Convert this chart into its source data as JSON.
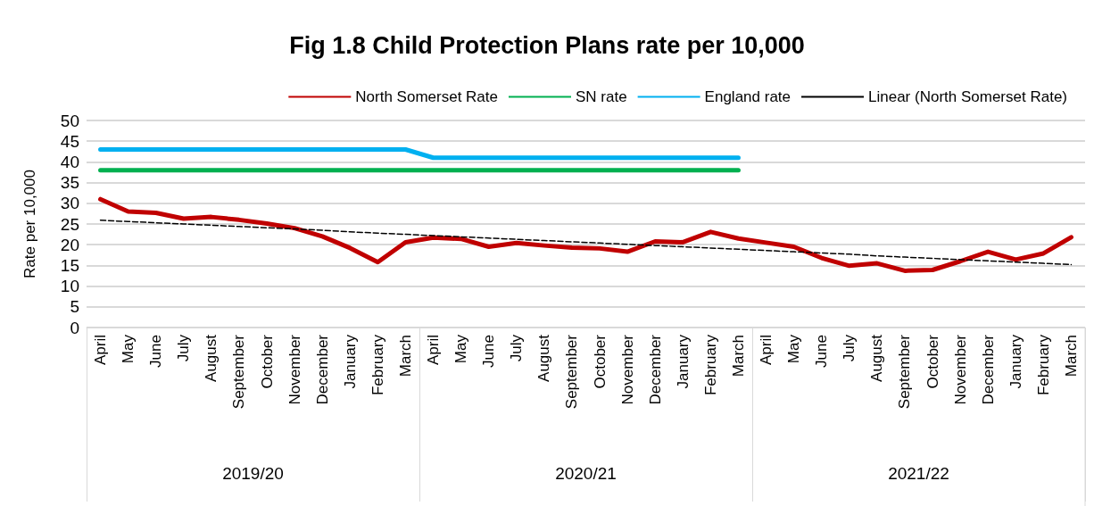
{
  "chart_data": {
    "type": "line",
    "title": "Fig 1.8 Child Protection Plans rate per 10,000",
    "ylabel": "Rate per 10,000",
    "categories": [
      "April",
      "May",
      "June",
      "July",
      "August",
      "September",
      "October",
      "November",
      "December",
      "January",
      "February",
      "March",
      "April",
      "May",
      "June",
      "July",
      "August",
      "September",
      "October",
      "November",
      "December",
      "January",
      "February",
      "March",
      "April",
      "May",
      "June",
      "July",
      "August",
      "September",
      "October",
      "November",
      "December",
      "January",
      "February",
      "March"
    ],
    "annotations": [
      "2019/20",
      "2020/21",
      "2021/22"
    ],
    "series": [
      {
        "name": "North Somerset Rate",
        "color": "#c00000",
        "values": [
          31,
          28,
          27.7,
          26.3,
          26.7,
          26,
          25.1,
          24,
          22,
          19.2,
          15.8,
          20.6,
          21.7,
          21.4,
          19.5,
          20.4,
          19.8,
          19.3,
          19.1,
          18.3,
          20.8,
          20.6,
          23.1,
          21.5,
          20.5,
          19.5,
          16.8,
          14.9,
          15.5,
          13.7,
          13.9,
          16,
          18.3,
          16.4,
          17.9,
          21.8
        ]
      },
      {
        "name": "SN rate",
        "color": "#00b050",
        "values": [
          38,
          38,
          38,
          38,
          38,
          38,
          38,
          38,
          38,
          38,
          38,
          38,
          38,
          38,
          38,
          38,
          38,
          38,
          38,
          38,
          38,
          38,
          38,
          38,
          null,
          null,
          null,
          null,
          null,
          null,
          null,
          null,
          null,
          null,
          null,
          null
        ]
      },
      {
        "name": "England rate",
        "color": "#00b0f0",
        "values": [
          43,
          43,
          43,
          43,
          43,
          43,
          43,
          43,
          43,
          43,
          43,
          43,
          41,
          41,
          41,
          41,
          41,
          41,
          41,
          41,
          41,
          41,
          41,
          41,
          null,
          null,
          null,
          null,
          null,
          null,
          null,
          null,
          null,
          null,
          null,
          null
        ]
      },
      {
        "name": "Linear (North Somerset Rate)",
        "color": "#000000",
        "line_style": "dashed",
        "values": [
          25.9,
          25.6,
          25.3,
          25.0,
          24.7,
          24.4,
          24.1,
          23.8,
          23.5,
          23.1,
          22.8,
          22.5,
          22.2,
          21.9,
          21.6,
          21.3,
          21.0,
          20.7,
          20.4,
          20.1,
          19.8,
          19.5,
          19.2,
          18.9,
          18.6,
          18.3,
          18.0,
          17.7,
          17.3,
          17.0,
          16.7,
          16.4,
          16.1,
          15.8,
          15.5,
          15.2
        ]
      }
    ],
    "ylim": [
      0,
      50
    ],
    "yticks": [
      0,
      5,
      10,
      15,
      20,
      25,
      30,
      35,
      40,
      45,
      50
    ],
    "grid": "y",
    "legend": "top right",
    "marker": "none",
    "line_style": "solid"
  }
}
